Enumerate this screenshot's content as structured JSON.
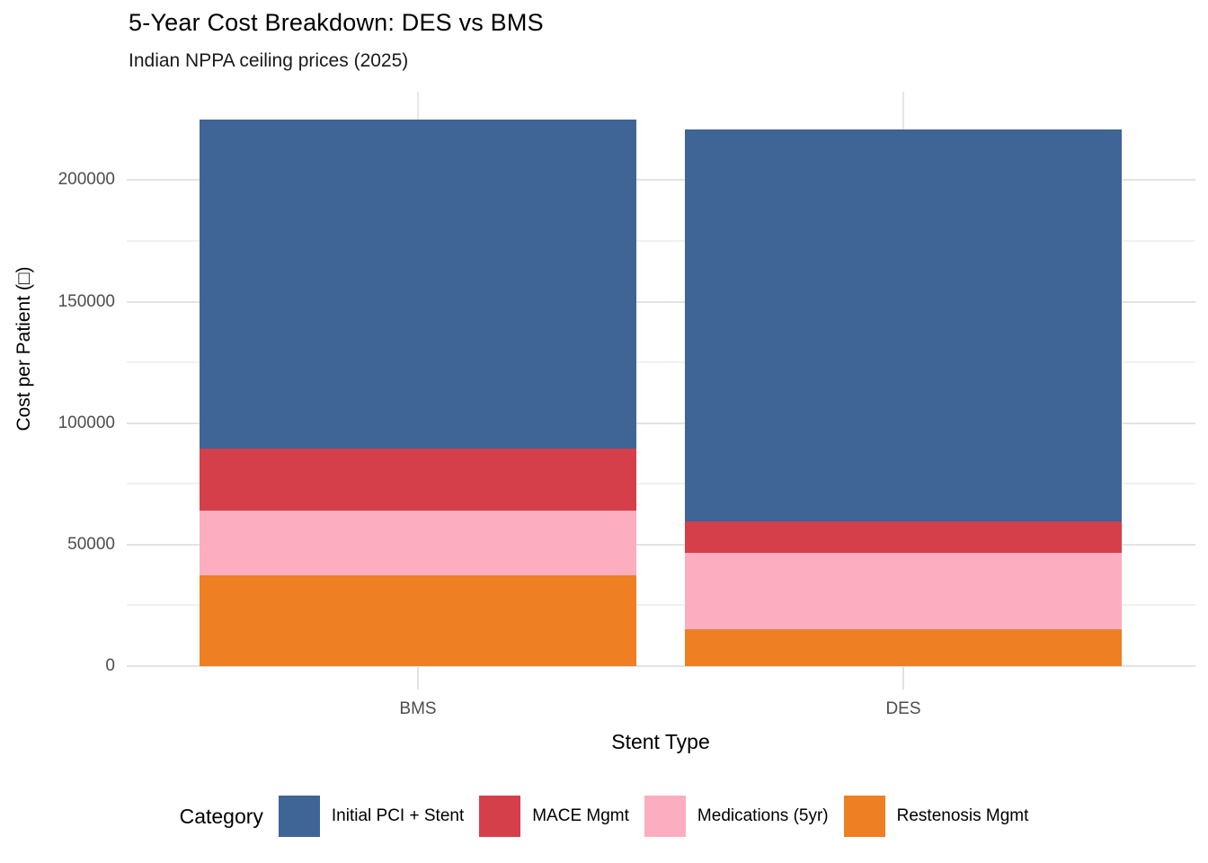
{
  "chart_data": {
    "type": "bar",
    "stacked": true,
    "title": "5-Year Cost Breakdown: DES vs BMS",
    "subtitle": "Indian NPPA ceiling prices (2025)",
    "xlabel": "Stent Type",
    "ylabel": "Cost per Patient (□)",
    "categories": [
      "BMS",
      "DES"
    ],
    "series": [
      {
        "name": "Initial PCI + Stent",
        "color": "#3f6496",
        "values": [
          135500,
          161500
        ]
      },
      {
        "name": "MACE Mgmt",
        "color": "#d43f4a",
        "values": [
          25500,
          13000
        ]
      },
      {
        "name": "Medications (5yr)",
        "color": "#fcaec0",
        "values": [
          26500,
          31500
        ]
      },
      {
        "name": "Restenosis Mgmt",
        "color": "#ee7f22",
        "values": [
          37500,
          15000
        ]
      }
    ],
    "stack_order_bottom_to_top": [
      "Restenosis Mgmt",
      "Medications (5yr)",
      "MACE Mgmt",
      "Initial PCI + Stent"
    ],
    "totals": [
      225000,
      221000
    ],
    "ylim": [
      0,
      236400
    ],
    "yticks": [
      0,
      50000,
      100000,
      150000,
      200000
    ],
    "minor_grid_step": 25000,
    "grid": "on",
    "legend_title": "Category",
    "legend_position": "bottom"
  }
}
